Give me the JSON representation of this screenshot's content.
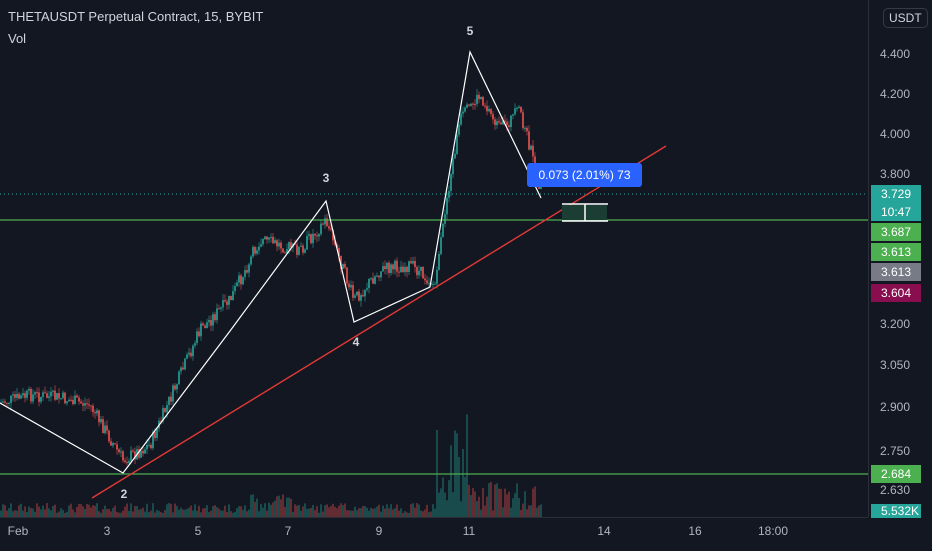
{
  "symbol_title": "THETAUSDT Perpetual Contract, 15, BYBIT",
  "volume_label": "Vol",
  "currency_button": "USDT",
  "price_axis_labels": [
    "4.400",
    "4.200",
    "4.000",
    "3.800",
    "3.200",
    "3.050",
    "2.900",
    "2.750",
    "2.630"
  ],
  "time_axis_labels": [
    "Feb",
    "3",
    "5",
    "7",
    "9",
    "11",
    "14",
    "16",
    "18:00"
  ],
  "price_tags": {
    "last_price": "3.729",
    "countdown": "10:47",
    "green_1": "3.687",
    "green_2": "3.613",
    "gray": "3.613",
    "red": "3.604",
    "support": "2.684",
    "volume": "5.532K"
  },
  "measure_readout": "0.073 (2.01%) 73",
  "wave_labels": [
    "2",
    "3",
    "4",
    "5"
  ],
  "colors": {
    "background": "#131722",
    "up": "#26a69a",
    "down": "#ef5350",
    "trendline": "#e53935",
    "horizontal": "#4caf50",
    "measure": "#2962ff",
    "wave": "#ffffff"
  }
}
